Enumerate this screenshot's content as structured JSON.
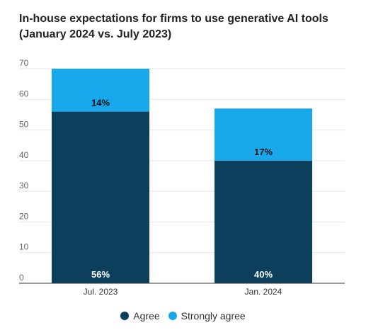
{
  "title_line1": "In-house expectations for firms to use generative AI tools",
  "title_line2": "(January 2024 vs. July 2023)",
  "chart_data": {
    "type": "bar",
    "stacked": true,
    "categories": [
      "Jul. 2023",
      "Jan. 2024"
    ],
    "series": [
      {
        "name": "Agree",
        "values": [
          56,
          40
        ],
        "labels": [
          "56%",
          "40%"
        ],
        "color": "#0b3f5c"
      },
      {
        "name": "Strongly agree",
        "values": [
          14,
          17
        ],
        "labels": [
          "14%",
          "17%"
        ],
        "color": "#17a8ec"
      }
    ],
    "ylim": [
      0,
      70
    ],
    "yticks": [
      0,
      10,
      20,
      30,
      40,
      50,
      60,
      70
    ],
    "grid": true,
    "legend": "bottom"
  }
}
